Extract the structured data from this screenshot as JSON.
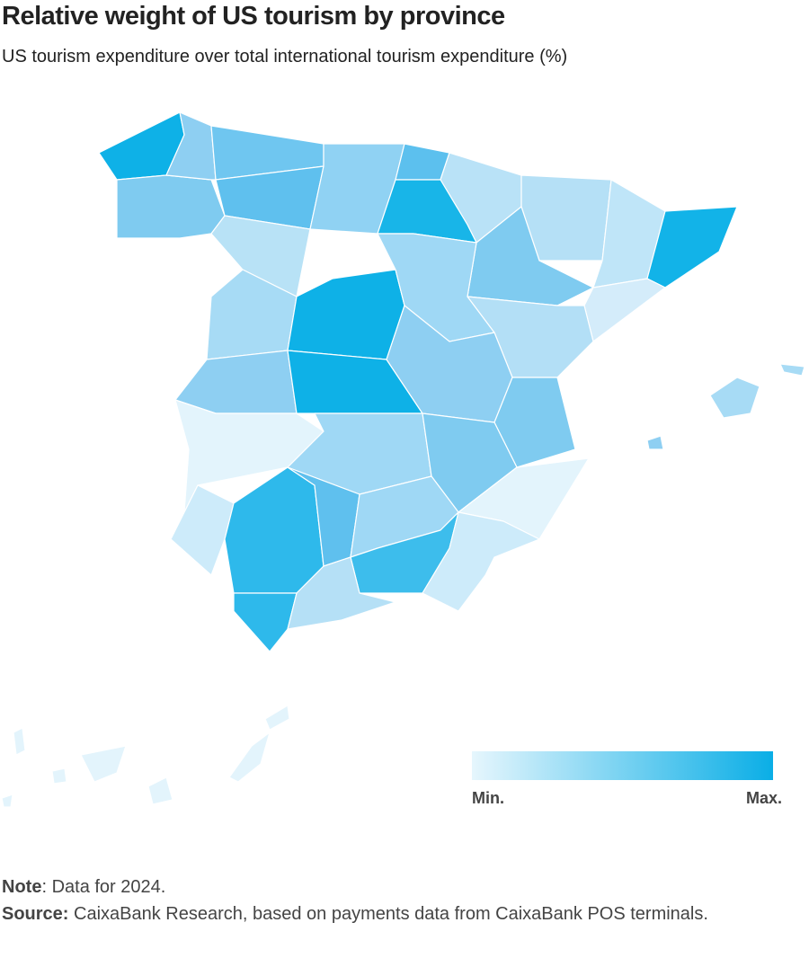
{
  "title": "Relative weight of US tourism by province",
  "subtitle": "US tourism expenditure over total international tourism expenditure (%)",
  "legend": {
    "min": "Min.",
    "max": "Max."
  },
  "notes": {
    "note_label": "Note",
    "note_text": ": Data for 2024.",
    "source_label": "Source:",
    "source_text": " CaixaBank Research, based on payments data from CaixaBank POS terminals."
  }
}
